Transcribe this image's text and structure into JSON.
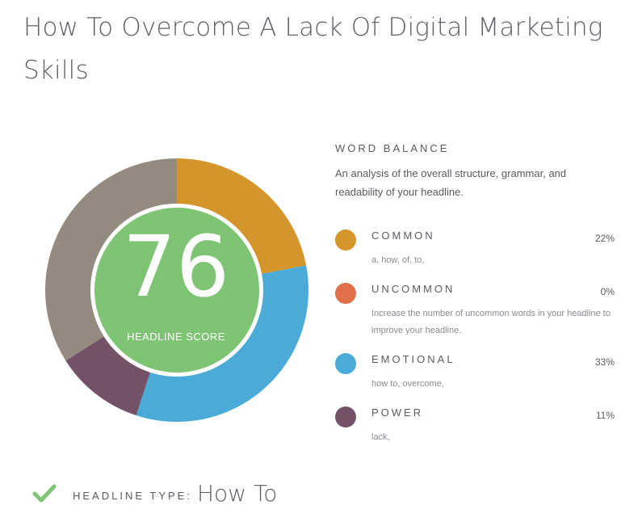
{
  "headline": "How To Overcome A Lack Of Digital Marketing Skills",
  "score": {
    "value": "76",
    "label": "HEADLINE SCORE",
    "color": "#7fc474"
  },
  "word_balance": {
    "title": "WORD BALANCE",
    "description": "An analysis of the overall structure, grammar, and readability of your headline.",
    "categories": [
      {
        "name": "COMMON",
        "percent_label": "22%",
        "percent": 22,
        "words": "a, how, of, to,",
        "color": "#d4952b"
      },
      {
        "name": "UNCOMMON",
        "percent_label": "0%",
        "percent": 0,
        "words": "Increase the number of uncommon words in your headline to improve your headline.",
        "color": "#e07049"
      },
      {
        "name": "EMOTIONAL",
        "percent_label": "33%",
        "percent": 33,
        "words": "how to, overcome,",
        "color": "#4aaad8"
      },
      {
        "name": "POWER",
        "percent_label": "11%",
        "percent": 11,
        "words": "lack,",
        "color": "#735166"
      }
    ],
    "remainder_color": "#958a80"
  },
  "headline_type": {
    "label": "HEADLINE TYPE:",
    "value": "How To",
    "check_icon": "check-icon",
    "check_color": "#7fc474"
  }
}
